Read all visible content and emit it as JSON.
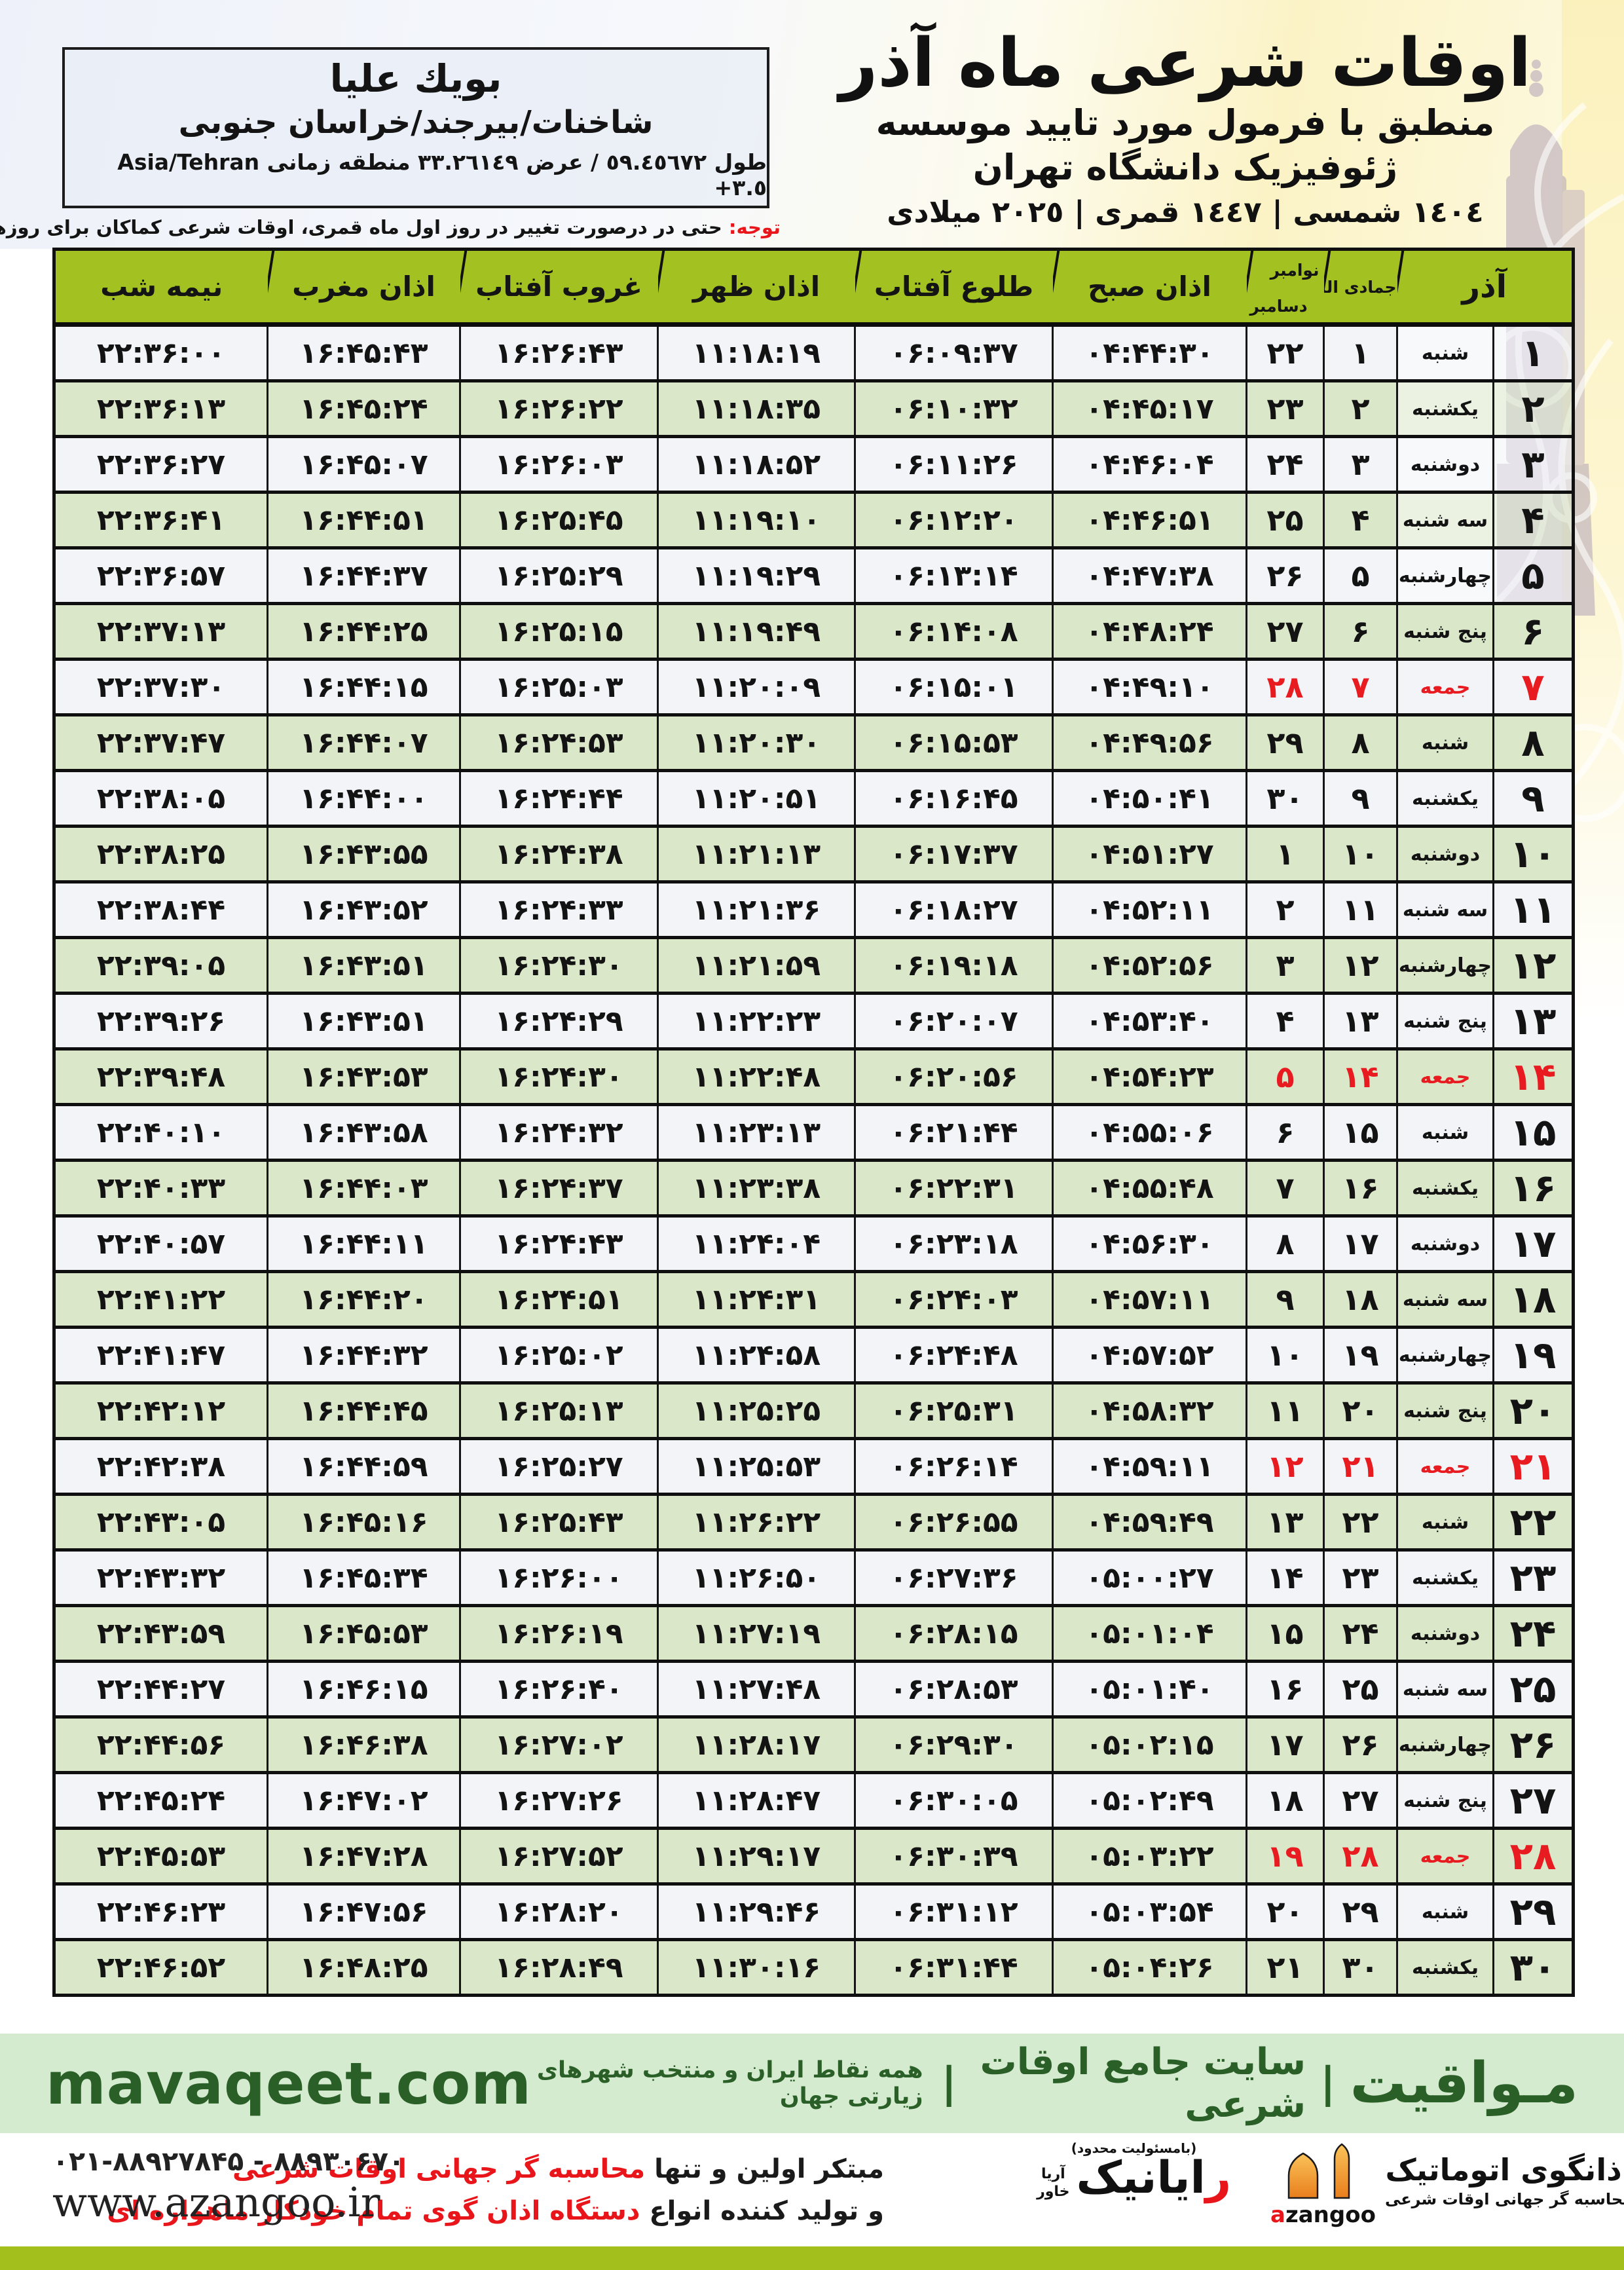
{
  "header": {
    "title": "اوقات شرعی ماه آذر",
    "subtitle": "منطبق با فرمول مورد تایید موسسه ژئوفیزیک دانشگاه تهران",
    "dates": "١٤٠٤ شمسی | ١٤٤٧ قمری | ٢٠٢٥ میلادی"
  },
  "location": {
    "name": "بویك علیا",
    "region": "شاخنات/بیرجند/خراسان جنوبی",
    "coords_prefix": "طول ٥٩.٤٥٦٧٢ / عرض ٣٣.٢٦١٤٩ منطقه زمانی",
    "timezone": "Asia/Tehran +٣.٥"
  },
  "note": {
    "label": "توجه:",
    "text": " حتی در درصورت تغییر در روز اول ماه قمری، اوقات شرعی کماکان برای روزهای شمسی و میلادی معتبر است."
  },
  "table": {
    "columns": {
      "azar": "آذر",
      "lunar": "جمادی الثانی",
      "greg_top": "نوامبر",
      "greg_bottom": "دسامبر",
      "fajr": "اذان صبح",
      "sunrise": "طلوع آفتاب",
      "dhuhr": "اذان ظهر",
      "sunset": "غروب آفتاب",
      "maghrib": "اذان مغرب",
      "midnight": "نیمه شب"
    },
    "rows": [
      {
        "azar": "۱",
        "weekday": "شنبه",
        "lunar": "۱",
        "greg": "۲۲",
        "fajr": "۰۴:۴۴:۳۰",
        "sunrise": "۰۶:۰۹:۳۷",
        "dhuhr": "۱۱:۱۸:۱۹",
        "sunset": "۱۶:۲۶:۴۳",
        "maghrib": "۱۶:۴۵:۴۳",
        "midnight": "۲۲:۳۶:۰۰",
        "friday": false
      },
      {
        "azar": "۲",
        "weekday": "یکشنبه",
        "lunar": "۲",
        "greg": "۲۳",
        "fajr": "۰۴:۴۵:۱۷",
        "sunrise": "۰۶:۱۰:۳۲",
        "dhuhr": "۱۱:۱۸:۳۵",
        "sunset": "۱۶:۲۶:۲۲",
        "maghrib": "۱۶:۴۵:۲۴",
        "midnight": "۲۲:۳۶:۱۳",
        "friday": false
      },
      {
        "azar": "۳",
        "weekday": "دوشنبه",
        "lunar": "۳",
        "greg": "۲۴",
        "fajr": "۰۴:۴۶:۰۴",
        "sunrise": "۰۶:۱۱:۲۶",
        "dhuhr": "۱۱:۱۸:۵۲",
        "sunset": "۱۶:۲۶:۰۳",
        "maghrib": "۱۶:۴۵:۰۷",
        "midnight": "۲۲:۳۶:۲۷",
        "friday": false
      },
      {
        "azar": "۴",
        "weekday": "سه شنبه",
        "lunar": "۴",
        "greg": "۲۵",
        "fajr": "۰۴:۴۶:۵۱",
        "sunrise": "۰۶:۱۲:۲۰",
        "dhuhr": "۱۱:۱۹:۱۰",
        "sunset": "۱۶:۲۵:۴۵",
        "maghrib": "۱۶:۴۴:۵۱",
        "midnight": "۲۲:۳۶:۴۱",
        "friday": false
      },
      {
        "azar": "۵",
        "weekday": "چهارشنبه",
        "lunar": "۵",
        "greg": "۲۶",
        "fajr": "۰۴:۴۷:۳۸",
        "sunrise": "۰۶:۱۳:۱۴",
        "dhuhr": "۱۱:۱۹:۲۹",
        "sunset": "۱۶:۲۵:۲۹",
        "maghrib": "۱۶:۴۴:۳۷",
        "midnight": "۲۲:۳۶:۵۷",
        "friday": false
      },
      {
        "azar": "۶",
        "weekday": "پنج شنبه",
        "lunar": "۶",
        "greg": "۲۷",
        "fajr": "۰۴:۴۸:۲۴",
        "sunrise": "۰۶:۱۴:۰۸",
        "dhuhr": "۱۱:۱۹:۴۹",
        "sunset": "۱۶:۲۵:۱۵",
        "maghrib": "۱۶:۴۴:۲۵",
        "midnight": "۲۲:۳۷:۱۳",
        "friday": false
      },
      {
        "azar": "۷",
        "weekday": "جمعه",
        "lunar": "۷",
        "greg": "۲۸",
        "fajr": "۰۴:۴۹:۱۰",
        "sunrise": "۰۶:۱۵:۰۱",
        "dhuhr": "۱۱:۲۰:۰۹",
        "sunset": "۱۶:۲۵:۰۳",
        "maghrib": "۱۶:۴۴:۱۵",
        "midnight": "۲۲:۳۷:۳۰",
        "friday": true
      },
      {
        "azar": "۸",
        "weekday": "شنبه",
        "lunar": "۸",
        "greg": "۲۹",
        "fajr": "۰۴:۴۹:۵۶",
        "sunrise": "۰۶:۱۵:۵۳",
        "dhuhr": "۱۱:۲۰:۳۰",
        "sunset": "۱۶:۲۴:۵۳",
        "maghrib": "۱۶:۴۴:۰۷",
        "midnight": "۲۲:۳۷:۴۷",
        "friday": false
      },
      {
        "azar": "۹",
        "weekday": "یکشنبه",
        "lunar": "۹",
        "greg": "۳۰",
        "fajr": "۰۴:۵۰:۴۱",
        "sunrise": "۰۶:۱۶:۴۵",
        "dhuhr": "۱۱:۲۰:۵۱",
        "sunset": "۱۶:۲۴:۴۴",
        "maghrib": "۱۶:۴۴:۰۰",
        "midnight": "۲۲:۳۸:۰۵",
        "friday": false
      },
      {
        "azar": "۱۰",
        "weekday": "دوشنبه",
        "lunar": "۱۰",
        "greg": "۱",
        "fajr": "۰۴:۵۱:۲۷",
        "sunrise": "۰۶:۱۷:۳۷",
        "dhuhr": "۱۱:۲۱:۱۳",
        "sunset": "۱۶:۲۴:۳۸",
        "maghrib": "۱۶:۴۳:۵۵",
        "midnight": "۲۲:۳۸:۲۵",
        "friday": false
      },
      {
        "azar": "۱۱",
        "weekday": "سه شنبه",
        "lunar": "۱۱",
        "greg": "۲",
        "fajr": "۰۴:۵۲:۱۱",
        "sunrise": "۰۶:۱۸:۲۷",
        "dhuhr": "۱۱:۲۱:۳۶",
        "sunset": "۱۶:۲۴:۳۳",
        "maghrib": "۱۶:۴۳:۵۲",
        "midnight": "۲۲:۳۸:۴۴",
        "friday": false
      },
      {
        "azar": "۱۲",
        "weekday": "چهارشنبه",
        "lunar": "۱۲",
        "greg": "۳",
        "fajr": "۰۴:۵۲:۵۶",
        "sunrise": "۰۶:۱۹:۱۸",
        "dhuhr": "۱۱:۲۱:۵۹",
        "sunset": "۱۶:۲۴:۳۰",
        "maghrib": "۱۶:۴۳:۵۱",
        "midnight": "۲۲:۳۹:۰۵",
        "friday": false
      },
      {
        "azar": "۱۳",
        "weekday": "پنج شنبه",
        "lunar": "۱۳",
        "greg": "۴",
        "fajr": "۰۴:۵۳:۴۰",
        "sunrise": "۰۶:۲۰:۰۷",
        "dhuhr": "۱۱:۲۲:۲۳",
        "sunset": "۱۶:۲۴:۲۹",
        "maghrib": "۱۶:۴۳:۵۱",
        "midnight": "۲۲:۳۹:۲۶",
        "friday": false
      },
      {
        "azar": "۱۴",
        "weekday": "جمعه",
        "lunar": "۱۴",
        "greg": "۵",
        "fajr": "۰۴:۵۴:۲۳",
        "sunrise": "۰۶:۲۰:۵۶",
        "dhuhr": "۱۱:۲۲:۴۸",
        "sunset": "۱۶:۲۴:۳۰",
        "maghrib": "۱۶:۴۳:۵۳",
        "midnight": "۲۲:۳۹:۴۸",
        "friday": true
      },
      {
        "azar": "۱۵",
        "weekday": "شنبه",
        "lunar": "۱۵",
        "greg": "۶",
        "fajr": "۰۴:۵۵:۰۶",
        "sunrise": "۰۶:۲۱:۴۴",
        "dhuhr": "۱۱:۲۳:۱۳",
        "sunset": "۱۶:۲۴:۳۲",
        "maghrib": "۱۶:۴۳:۵۸",
        "midnight": "۲۲:۴۰:۱۰",
        "friday": false
      },
      {
        "azar": "۱۶",
        "weekday": "یکشنبه",
        "lunar": "۱۶",
        "greg": "۷",
        "fajr": "۰۴:۵۵:۴۸",
        "sunrise": "۰۶:۲۲:۳۱",
        "dhuhr": "۱۱:۲۳:۳۸",
        "sunset": "۱۶:۲۴:۳۷",
        "maghrib": "۱۶:۴۴:۰۳",
        "midnight": "۲۲:۴۰:۳۳",
        "friday": false
      },
      {
        "azar": "۱۷",
        "weekday": "دوشنبه",
        "lunar": "۱۷",
        "greg": "۸",
        "fajr": "۰۴:۵۶:۳۰",
        "sunrise": "۰۶:۲۳:۱۸",
        "dhuhr": "۱۱:۲۴:۰۴",
        "sunset": "۱۶:۲۴:۴۳",
        "maghrib": "۱۶:۴۴:۱۱",
        "midnight": "۲۲:۴۰:۵۷",
        "friday": false
      },
      {
        "azar": "۱۸",
        "weekday": "سه شنبه",
        "lunar": "۱۸",
        "greg": "۹",
        "fajr": "۰۴:۵۷:۱۱",
        "sunrise": "۰۶:۲۴:۰۳",
        "dhuhr": "۱۱:۲۴:۳۱",
        "sunset": "۱۶:۲۴:۵۱",
        "maghrib": "۱۶:۴۴:۲۰",
        "midnight": "۲۲:۴۱:۲۲",
        "friday": false
      },
      {
        "azar": "۱۹",
        "weekday": "چهارشنبه",
        "lunar": "۱۹",
        "greg": "۱۰",
        "fajr": "۰۴:۵۷:۵۲",
        "sunrise": "۰۶:۲۴:۴۸",
        "dhuhr": "۱۱:۲۴:۵۸",
        "sunset": "۱۶:۲۵:۰۲",
        "maghrib": "۱۶:۴۴:۳۲",
        "midnight": "۲۲:۴۱:۴۷",
        "friday": false
      },
      {
        "azar": "۲۰",
        "weekday": "پنج شنبه",
        "lunar": "۲۰",
        "greg": "۱۱",
        "fajr": "۰۴:۵۸:۳۲",
        "sunrise": "۰۶:۲۵:۳۱",
        "dhuhr": "۱۱:۲۵:۲۵",
        "sunset": "۱۶:۲۵:۱۳",
        "maghrib": "۱۶:۴۴:۴۵",
        "midnight": "۲۲:۴۲:۱۲",
        "friday": false
      },
      {
        "azar": "۲۱",
        "weekday": "جمعه",
        "lunar": "۲۱",
        "greg": "۱۲",
        "fajr": "۰۴:۵۹:۱۱",
        "sunrise": "۰۶:۲۶:۱۴",
        "dhuhr": "۱۱:۲۵:۵۳",
        "sunset": "۱۶:۲۵:۲۷",
        "maghrib": "۱۶:۴۴:۵۹",
        "midnight": "۲۲:۴۲:۳۸",
        "friday": true
      },
      {
        "azar": "۲۲",
        "weekday": "شنبه",
        "lunar": "۲۲",
        "greg": "۱۳",
        "fajr": "۰۴:۵۹:۴۹",
        "sunrise": "۰۶:۲۶:۵۵",
        "dhuhr": "۱۱:۲۶:۲۲",
        "sunset": "۱۶:۲۵:۴۳",
        "maghrib": "۱۶:۴۵:۱۶",
        "midnight": "۲۲:۴۳:۰۵",
        "friday": false
      },
      {
        "azar": "۲۳",
        "weekday": "یکشنبه",
        "lunar": "۲۳",
        "greg": "۱۴",
        "fajr": "۰۵:۰۰:۲۷",
        "sunrise": "۰۶:۲۷:۳۶",
        "dhuhr": "۱۱:۲۶:۵۰",
        "sunset": "۱۶:۲۶:۰۰",
        "maghrib": "۱۶:۴۵:۳۴",
        "midnight": "۲۲:۴۳:۳۲",
        "friday": false
      },
      {
        "azar": "۲۴",
        "weekday": "دوشنبه",
        "lunar": "۲۴",
        "greg": "۱۵",
        "fajr": "۰۵:۰۱:۰۴",
        "sunrise": "۰۶:۲۸:۱۵",
        "dhuhr": "۱۱:۲۷:۱۹",
        "sunset": "۱۶:۲۶:۱۹",
        "maghrib": "۱۶:۴۵:۵۳",
        "midnight": "۲۲:۴۳:۵۹",
        "friday": false
      },
      {
        "azar": "۲۵",
        "weekday": "سه شنبه",
        "lunar": "۲۵",
        "greg": "۱۶",
        "fajr": "۰۵:۰۱:۴۰",
        "sunrise": "۰۶:۲۸:۵۳",
        "dhuhr": "۱۱:۲۷:۴۸",
        "sunset": "۱۶:۲۶:۴۰",
        "maghrib": "۱۶:۴۶:۱۵",
        "midnight": "۲۲:۴۴:۲۷",
        "friday": false
      },
      {
        "azar": "۲۶",
        "weekday": "چهارشنبه",
        "lunar": "۲۶",
        "greg": "۱۷",
        "fajr": "۰۵:۰۲:۱۵",
        "sunrise": "۰۶:۲۹:۳۰",
        "dhuhr": "۱۱:۲۸:۱۷",
        "sunset": "۱۶:۲۷:۰۲",
        "maghrib": "۱۶:۴۶:۳۸",
        "midnight": "۲۲:۴۴:۵۶",
        "friday": false
      },
      {
        "azar": "۲۷",
        "weekday": "پنج شنبه",
        "lunar": "۲۷",
        "greg": "۱۸",
        "fajr": "۰۵:۰۲:۴۹",
        "sunrise": "۰۶:۳۰:۰۵",
        "dhuhr": "۱۱:۲۸:۴۷",
        "sunset": "۱۶:۲۷:۲۶",
        "maghrib": "۱۶:۴۷:۰۲",
        "midnight": "۲۲:۴۵:۲۴",
        "friday": false
      },
      {
        "azar": "۲۸",
        "weekday": "جمعه",
        "lunar": "۲۸",
        "greg": "۱۹",
        "fajr": "۰۵:۰۳:۲۲",
        "sunrise": "۰۶:۳۰:۳۹",
        "dhuhr": "۱۱:۲۹:۱۷",
        "sunset": "۱۶:۲۷:۵۲",
        "maghrib": "۱۶:۴۷:۲۸",
        "midnight": "۲۲:۴۵:۵۳",
        "friday": true
      },
      {
        "azar": "۲۹",
        "weekday": "شنبه",
        "lunar": "۲۹",
        "greg": "۲۰",
        "fajr": "۰۵:۰۳:۵۴",
        "sunrise": "۰۶:۳۱:۱۲",
        "dhuhr": "۱۱:۲۹:۴۶",
        "sunset": "۱۶:۲۸:۲۰",
        "maghrib": "۱۶:۴۷:۵۶",
        "midnight": "۲۲:۴۶:۲۳",
        "friday": false
      },
      {
        "azar": "۳۰",
        "weekday": "یکشنبه",
        "lunar": "۳۰",
        "greg": "۲۱",
        "fajr": "۰۵:۰۴:۲۶",
        "sunrise": "۰۶:۳۱:۴۴",
        "dhuhr": "۱۱:۳۰:۱۶",
        "sunset": "۱۶:۲۸:۴۹",
        "maghrib": "۱۶:۴۸:۲۵",
        "midnight": "۲۲:۴۶:۵۲",
        "friday": false
      }
    ]
  },
  "mavaqeet": {
    "brand": "مـواقیت",
    "pipe": "|",
    "site_label": "سایت جامع اوقات شرعی",
    "tagline": "همه نقاط ایران و منتخب شهرهای زیارتی جهان",
    "domain": "mavaqeet.com"
  },
  "footer": {
    "phone": "۰۲۱-۸۸۹۲۷۸۴۵ - ۸۸۹۳۰۶۷۰",
    "website": "www.azangoo.ir",
    "line1_black": "مبتکر اولین و تنها ",
    "line1_red": "محاسبه گر جهانی اوقات شرعی",
    "line2_black": "و تولید کننده انواع ",
    "line2_red": "دستگاه اذان گوی تمام خودکار ماهواره ای",
    "rayanik": {
      "note": "(بامسئولیت محدود)",
      "name_first": "ر",
      "name_rest": "ایانیک",
      "sub_top": "آریا",
      "sub_bottom": "خاور"
    },
    "azangoo": {
      "fa_first": "ا",
      "fa_rest": "ذانگوی اتوماتیک",
      "tagline": "محاسبه گر جهانی اوقات شرعی",
      "en_first": "a",
      "en_rest": "zangoo"
    }
  },
  "colors": {
    "accent_olive": "#a4c122",
    "row_green": "#dbe7c9",
    "row_white": "#f2f4f8",
    "red": "#e81b21",
    "mavaqeet_bg": "#d5ebcf",
    "mavaqeet_text": "#2a5f28",
    "orange": "#f09422"
  }
}
